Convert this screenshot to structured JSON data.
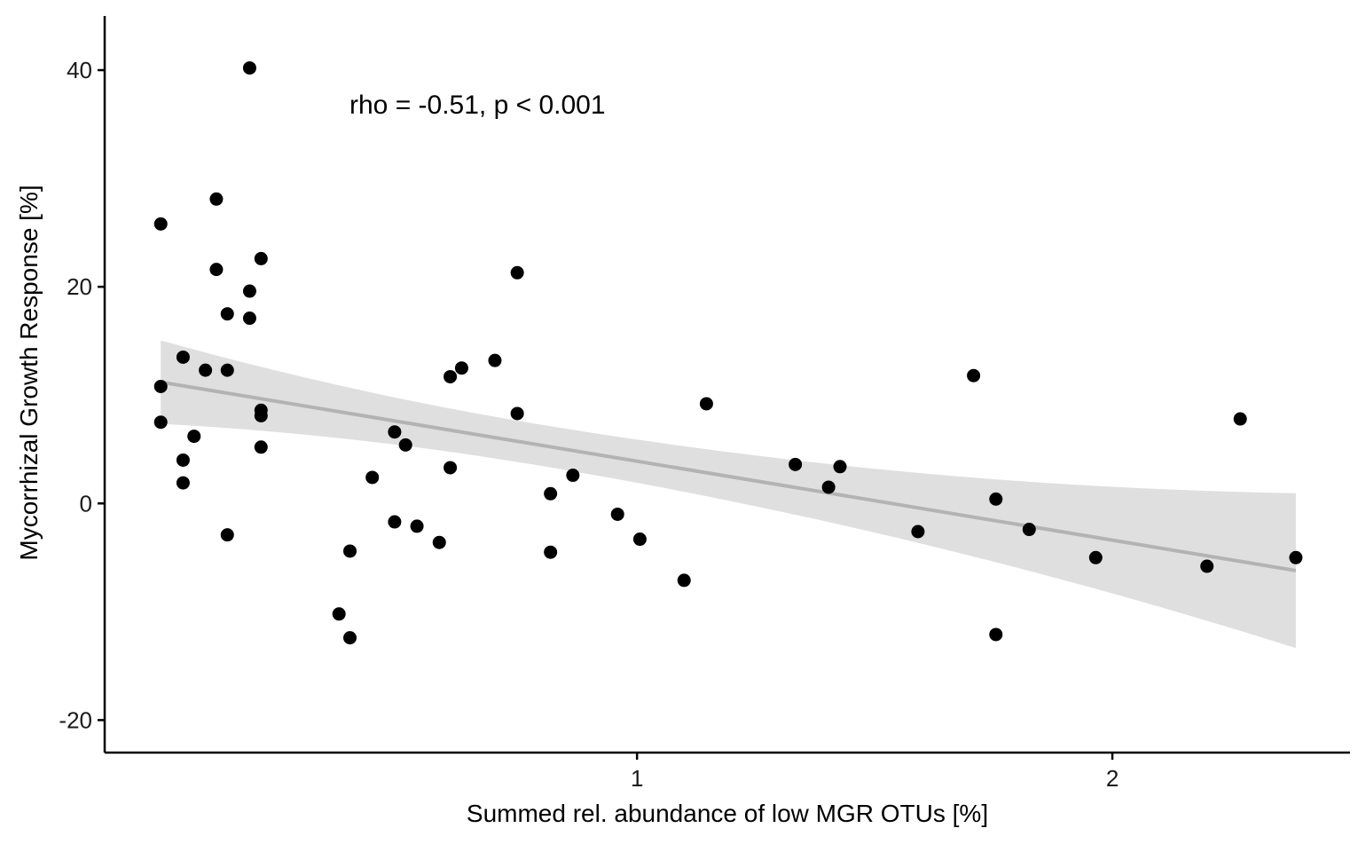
{
  "chart_data": {
    "type": "scatter",
    "title": "",
    "xlabel": "Summed rel. abundance of low MGR OTUs [%]",
    "ylabel": "Mycorrhizal Growth Response [%]",
    "annotation": "rho = -0.51, p < 0.001",
    "xlim": [
      -0.12,
      2.5
    ],
    "ylim": [
      -23,
      45
    ],
    "x_ticks": [
      {
        "value": 1,
        "label": "1"
      },
      {
        "value": 2,
        "label": "2"
      }
    ],
    "y_ticks": [
      {
        "value": 40,
        "label": "40"
      },
      {
        "value": 20,
        "label": "20"
      },
      {
        "value": 0,
        "label": "0"
      },
      {
        "value": -20,
        "label": "-20"
      }
    ],
    "grid": false,
    "colors": {
      "points": "#000000",
      "fit_line": "#b3b3b3",
      "confidence_band": "#d9d9d9",
      "axis": "#000000"
    },
    "points": [
      {
        "x": -0.002,
        "y": 25.8
      },
      {
        "x": -0.002,
        "y": 10.8
      },
      {
        "x": -0.002,
        "y": 7.5
      },
      {
        "x": 0.045,
        "y": 13.5
      },
      {
        "x": 0.045,
        "y": 4.0
      },
      {
        "x": 0.045,
        "y": 1.9
      },
      {
        "x": 0.068,
        "y": 6.2
      },
      {
        "x": 0.092,
        "y": 12.3
      },
      {
        "x": 0.115,
        "y": 28.1
      },
      {
        "x": 0.115,
        "y": 21.6
      },
      {
        "x": 0.138,
        "y": 17.5
      },
      {
        "x": 0.138,
        "y": 12.3
      },
      {
        "x": 0.138,
        "y": -2.9
      },
      {
        "x": 0.185,
        "y": 40.2
      },
      {
        "x": 0.185,
        "y": 19.6
      },
      {
        "x": 0.185,
        "y": 17.1
      },
      {
        "x": 0.209,
        "y": 22.6
      },
      {
        "x": 0.209,
        "y": 8.6
      },
      {
        "x": 0.209,
        "y": 8.1
      },
      {
        "x": 0.209,
        "y": 5.2
      },
      {
        "x": 0.373,
        "y": -10.2
      },
      {
        "x": 0.396,
        "y": -4.4
      },
      {
        "x": 0.396,
        "y": -12.4
      },
      {
        "x": 0.443,
        "y": 2.4
      },
      {
        "x": 0.49,
        "y": 6.6
      },
      {
        "x": 0.49,
        "y": -1.7
      },
      {
        "x": 0.513,
        "y": 5.4
      },
      {
        "x": 0.537,
        "y": -2.1
      },
      {
        "x": 0.584,
        "y": -3.6
      },
      {
        "x": 0.607,
        "y": 11.7
      },
      {
        "x": 0.607,
        "y": 3.3
      },
      {
        "x": 0.631,
        "y": 12.5
      },
      {
        "x": 0.701,
        "y": 13.2
      },
      {
        "x": 0.748,
        "y": 21.3
      },
      {
        "x": 0.748,
        "y": 8.3
      },
      {
        "x": 0.818,
        "y": 0.9
      },
      {
        "x": 0.818,
        "y": -4.5
      },
      {
        "x": 0.865,
        "y": 2.6
      },
      {
        "x": 0.959,
        "y": -1.0
      },
      {
        "x": 1.006,
        "y": -3.3
      },
      {
        "x": 1.099,
        "y": -7.1
      },
      {
        "x": 1.146,
        "y": 9.2
      },
      {
        "x": 1.333,
        "y": 3.6
      },
      {
        "x": 1.403,
        "y": 1.5
      },
      {
        "x": 1.427,
        "y": 3.4
      },
      {
        "x": 1.591,
        "y": -2.6
      },
      {
        "x": 1.708,
        "y": 11.8
      },
      {
        "x": 1.755,
        "y": 0.4
      },
      {
        "x": 1.755,
        "y": -12.1
      },
      {
        "x": 1.825,
        "y": -2.4
      },
      {
        "x": 1.965,
        "y": -5.0
      },
      {
        "x": 2.199,
        "y": -5.8
      },
      {
        "x": 2.269,
        "y": 7.8
      },
      {
        "x": 2.386,
        "y": -5.0
      }
    ],
    "fit": {
      "x_start": -0.002,
      "x_end": 2.386,
      "line": [
        11.2,
        -6.2
      ],
      "band_upper": [
        15.0,
        1.0
      ],
      "band_lower": [
        7.3,
        -13.3
      ]
    }
  }
}
